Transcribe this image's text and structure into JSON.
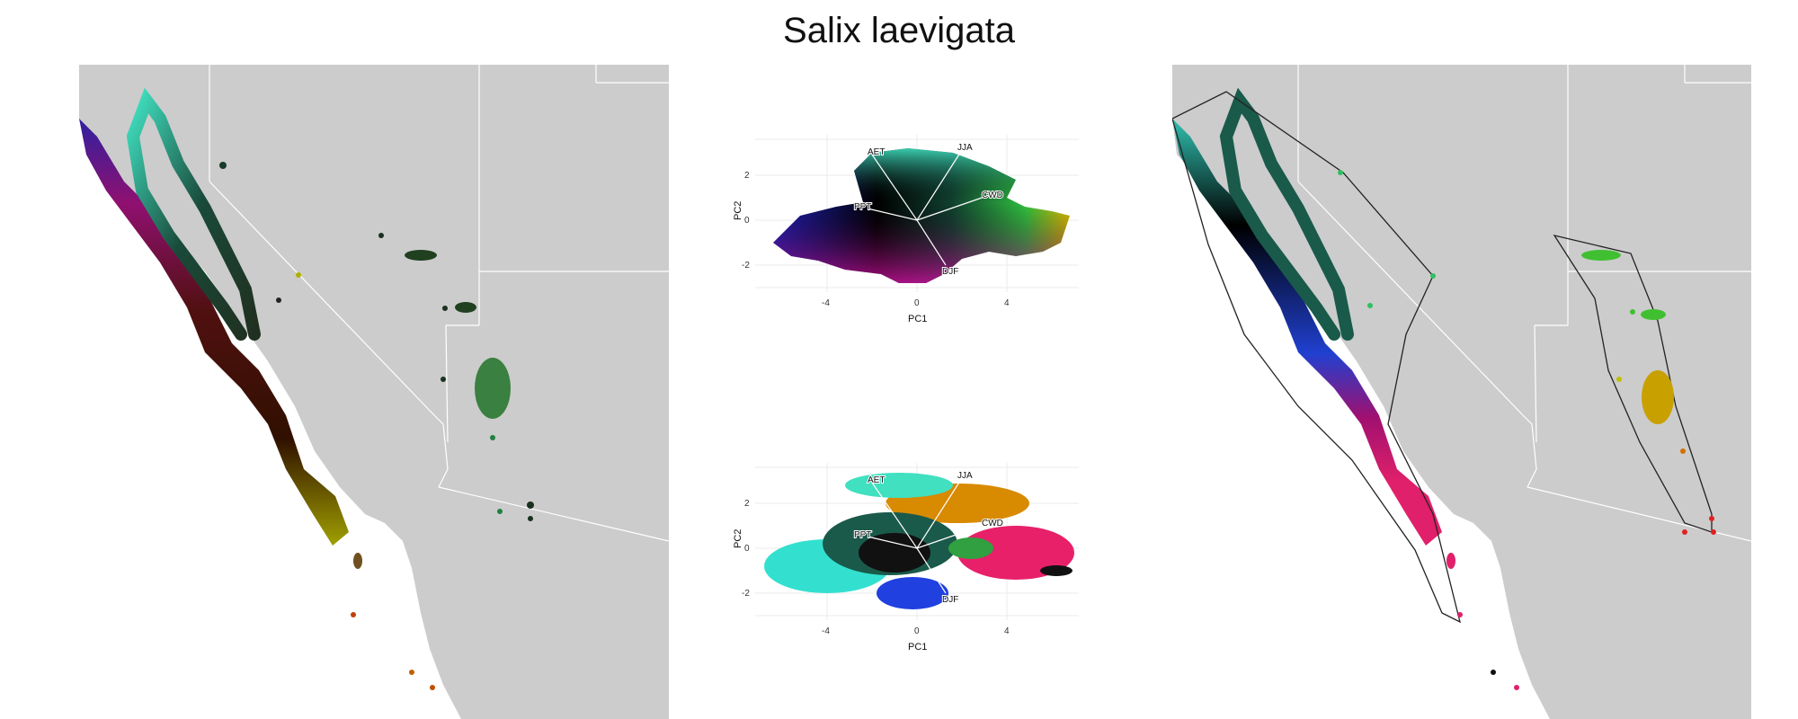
{
  "title": "Salix laevigata",
  "colors": {
    "land": "#cccccc",
    "ocean": "#ffffff",
    "border": "#ffffff",
    "grid": "#ebebeb",
    "panel_bg": "#ffffff"
  },
  "pca": {
    "xlabel": "PC1",
    "ylabel": "PC2",
    "x_ticks": [
      "-4",
      "0",
      "4"
    ],
    "y_ticks": [
      "2",
      "0",
      "-2"
    ],
    "vectors": [
      "AET",
      "JJA",
      "CWD",
      "PPT",
      "DJF"
    ]
  },
  "chart_data": [
    {
      "type": "scatter",
      "title": "",
      "xlabel": "PC1",
      "ylabel": "PC2",
      "xlim": [
        -6.5,
        6.5
      ],
      "ylim": [
        -3,
        3.3
      ],
      "description_mode": "continuous color-space of climate PCA",
      "loadings": [
        {
          "name": "AET",
          "x": -2,
          "y": 2.9
        },
        {
          "name": "JJA",
          "x": 2,
          "y": 3.1
        },
        {
          "name": "CWD",
          "x": 3.1,
          "y": 1.1
        },
        {
          "name": "PPT",
          "x": -2.2,
          "y": 0.6
        },
        {
          "name": "DJF",
          "x": 1.3,
          "y": -2.0
        }
      ]
    },
    {
      "type": "scatter",
      "title": "",
      "xlabel": "PC1",
      "ylabel": "PC2",
      "xlim": [
        -6.5,
        6.5
      ],
      "ylim": [
        -3,
        3.3
      ],
      "clusters": [
        {
          "color": "#33e0d0",
          "cx": -3.5,
          "cy": -0.8
        },
        {
          "color": "#1a7a6a",
          "cx": -1.0,
          "cy": 0.5
        },
        {
          "color": "#d88a00",
          "cx": 0.5,
          "cy": 2.0
        },
        {
          "color": "#e8206a",
          "cx": 3.5,
          "cy": -0.5
        },
        {
          "color": "#2040e0",
          "cx": -0.5,
          "cy": -2.3
        },
        {
          "color": "#111111",
          "cx": 4.8,
          "cy": -1.3
        }
      ]
    }
  ]
}
